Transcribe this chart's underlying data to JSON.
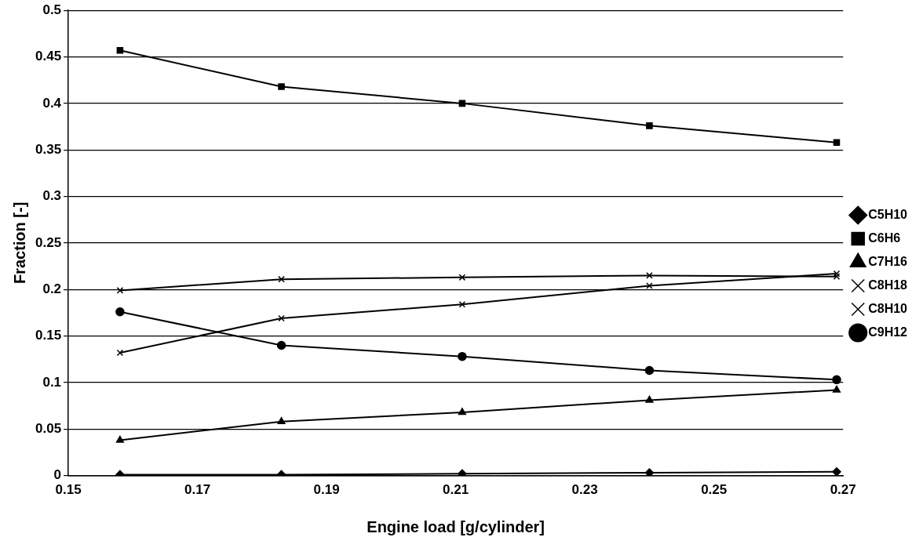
{
  "chart_data": {
    "type": "line",
    "xlabel": "Engine load [g/cylinder]",
    "ylabel": "Fraction [-]",
    "x": [
      0.158,
      0.183,
      0.211,
      0.24,
      0.269
    ],
    "xlim": [
      0.15,
      0.27
    ],
    "xticks": [
      0.15,
      0.17,
      0.19,
      0.21,
      0.23,
      0.25,
      0.27
    ],
    "ylim": [
      0,
      0.5
    ],
    "yticks": [
      0,
      0.05,
      0.1,
      0.15,
      0.2,
      0.25,
      0.3,
      0.35,
      0.4,
      0.45,
      0.5
    ],
    "grid": "y",
    "legend": "right",
    "line_style": "solid",
    "series": [
      {
        "name": "C5H10",
        "color": "#000000",
        "marker": "diamond",
        "values": [
          0.001,
          0.001,
          0.002,
          0.003,
          0.004
        ]
      },
      {
        "name": "C6H6",
        "color": "#000000",
        "marker": "square",
        "values": [
          0.457,
          0.418,
          0.4,
          0.376,
          0.358
        ]
      },
      {
        "name": "C7H16",
        "color": "#000000",
        "marker": "triangle",
        "values": [
          0.038,
          0.058,
          0.068,
          0.081,
          0.092
        ]
      },
      {
        "name": "C8H18",
        "color": "#000000",
        "marker": "cross",
        "values": [
          0.132,
          0.169,
          0.184,
          0.204,
          0.217
        ]
      },
      {
        "name": "C8H10",
        "color": "#000000",
        "marker": "cross",
        "values": [
          0.199,
          0.211,
          0.213,
          0.215,
          0.214
        ]
      },
      {
        "name": "C9H12",
        "color": "#000000",
        "marker": "circle",
        "values": [
          0.176,
          0.14,
          0.128,
          0.113,
          0.103
        ]
      }
    ]
  }
}
